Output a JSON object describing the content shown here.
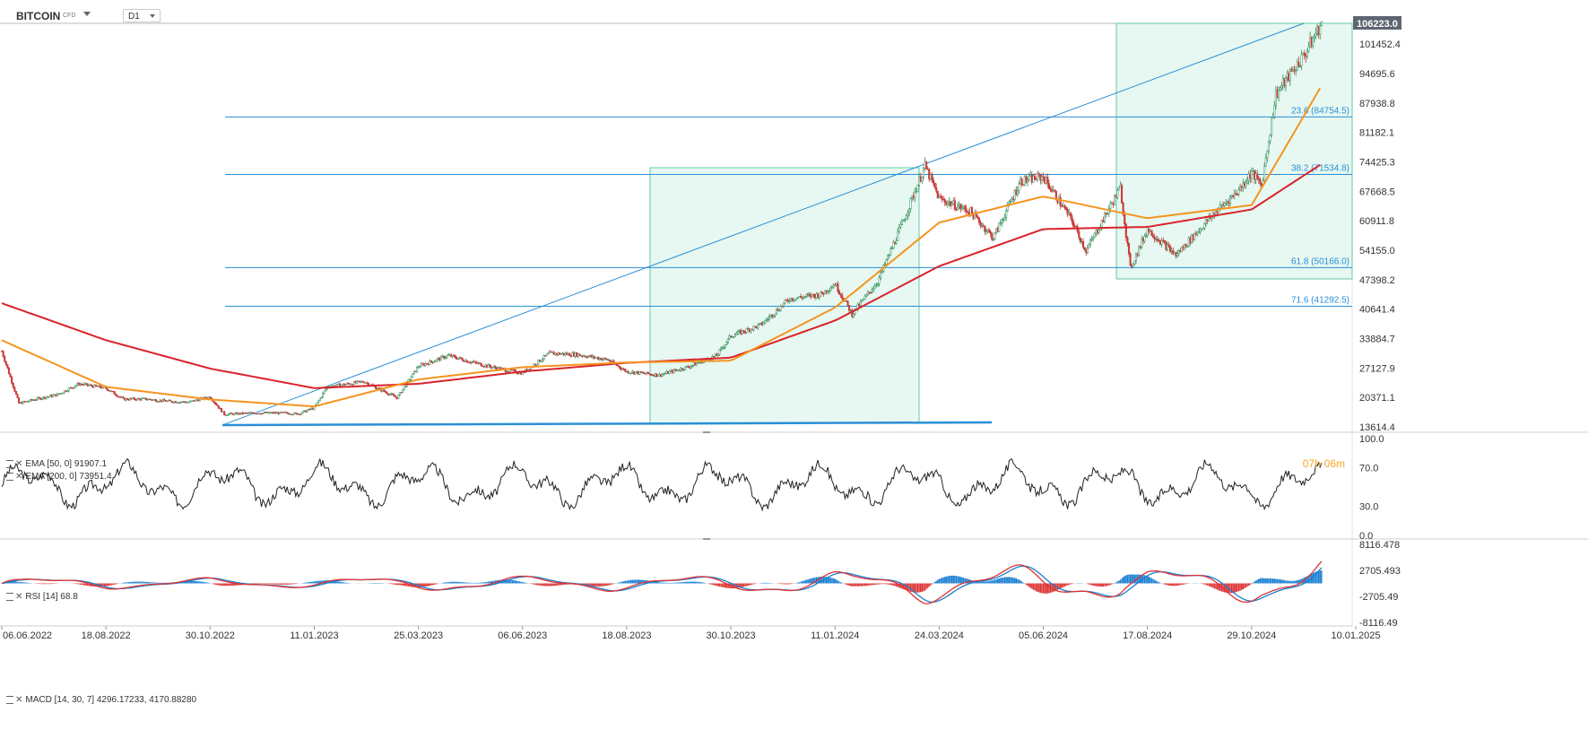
{
  "header": {
    "symbol": "BITCOIN",
    "symbol_sub": "CFD",
    "timeframe": "D1"
  },
  "timer": {
    "hours": "07",
    "hours_unit": "h",
    "minutes": "06",
    "minutes_unit": "m"
  },
  "indicators": {
    "ema50": "EMA [50, 0] 91907.1",
    "ema200": "EMA [200, 0] 73951.4",
    "rsi": "RSI [14] 68.8",
    "macd": "MACD [14, 30, 7] 4296.17233, 4170.88280"
  },
  "colors": {
    "ema50": "#f5941f",
    "ema200": "#d9232a",
    "fib": "#2a8fd6",
    "box": "#d9f5ea",
    "box_border": "#63c9a4",
    "up": "#2f8f5b",
    "down": "#c73a3a",
    "macd_signal": "#1a7fd1",
    "macd_line": "#d33"
  },
  "chart_data": {
    "type": "candlestick",
    "x_ticks": [
      "06.06.2022",
      "18.08.2022",
      "30.10.2022",
      "11.01.2023",
      "25.03.2023",
      "06.06.2023",
      "18.08.2023",
      "30.10.2023",
      "11.01.2024",
      "24.03.2024",
      "05.06.2024",
      "17.08.2024",
      "29.10.2024",
      "10.01.2025"
    ],
    "price_ticks": [
      "101452.4",
      "94695.6",
      "87938.8",
      "81182.1",
      "74425.3",
      "67668.5",
      "60911.8",
      "54155.0",
      "47398.2",
      "40641.4",
      "33884.7",
      "27127.9",
      "20371.1",
      "13614.4"
    ],
    "price_range": [
      13614.4,
      106223.0
    ],
    "last_price": "106223.0",
    "price_series": [
      [
        "06.06.2022",
        31000
      ],
      [
        "18.06.2022",
        19000
      ],
      [
        "30.06.2022",
        20000
      ],
      [
        "15.07.2022",
        21000
      ],
      [
        "30.07.2022",
        23500
      ],
      [
        "18.08.2022",
        22500
      ],
      [
        "30.08.2022",
        20000
      ],
      [
        "15.09.2022",
        20000
      ],
      [
        "30.09.2022",
        19500
      ],
      [
        "15.10.2022",
        19300
      ],
      [
        "30.10.2022",
        20500
      ],
      [
        "09.11.2022",
        16500
      ],
      [
        "30.11.2022",
        16800
      ],
      [
        "20.12.2022",
        16800
      ],
      [
        "31.12.2022",
        16600
      ],
      [
        "11.01.2023",
        18000
      ],
      [
        "20.01.2023",
        22800
      ],
      [
        "15.02.2023",
        24000
      ],
      [
        "10.03.2023",
        20300
      ],
      [
        "25.03.2023",
        27500
      ],
      [
        "15.04.2023",
        30000
      ],
      [
        "01.05.2023",
        28500
      ],
      [
        "20.05.2023",
        27000
      ],
      [
        "06.06.2023",
        26000
      ],
      [
        "25.06.2023",
        30500
      ],
      [
        "15.07.2023",
        30200
      ],
      [
        "05.08.2023",
        29000
      ],
      [
        "18.08.2023",
        26300
      ],
      [
        "10.09.2023",
        25500
      ],
      [
        "01.10.2023",
        27500
      ],
      [
        "20.10.2023",
        30000
      ],
      [
        "30.10.2023",
        34500
      ],
      [
        "20.11.2023",
        37000
      ],
      [
        "10.12.2023",
        43000
      ],
      [
        "01.01.2024",
        44000
      ],
      [
        "11.01.2024",
        46500
      ],
      [
        "23.01.2024",
        39500
      ],
      [
        "10.02.2024",
        47000
      ],
      [
        "28.02.2024",
        61000
      ],
      [
        "14.03.2024",
        73500
      ],
      [
        "24.03.2024",
        66000
      ],
      [
        "15.04.2024",
        63000
      ],
      [
        "01.05.2024",
        57000
      ],
      [
        "20.05.2024",
        70000
      ],
      [
        "05.06.2024",
        71000
      ],
      [
        "25.06.2024",
        61000
      ],
      [
        "05.07.2024",
        54000
      ],
      [
        "29.07.2024",
        68500
      ],
      [
        "05.08.2024",
        50000
      ],
      [
        "17.08.2024",
        59000
      ],
      [
        "06.09.2024",
        53000
      ],
      [
        "01.10.2024",
        62000
      ],
      [
        "20.10.2024",
        68000
      ],
      [
        "29.10.2024",
        72000
      ],
      [
        "05.11.2024",
        69000
      ],
      [
        "15.11.2024",
        90000
      ],
      [
        "05.12.2024",
        99000
      ],
      [
        "17.12.2024",
        106223
      ]
    ],
    "ema50_series": [
      [
        "06.06.2022",
        33500
      ],
      [
        "18.08.2022",
        22800
      ],
      [
        "30.10.2022",
        19900
      ],
      [
        "11.01.2023",
        18300
      ],
      [
        "25.03.2023",
        24500
      ],
      [
        "06.06.2023",
        27300
      ],
      [
        "18.08.2023",
        28400
      ],
      [
        "30.10.2023",
        28800
      ],
      [
        "11.01.2024",
        41000
      ],
      [
        "24.03.2024",
        60500
      ],
      [
        "05.06.2024",
        66500
      ],
      [
        "17.08.2024",
        61500
      ],
      [
        "29.10.2024",
        64500
      ],
      [
        "17.12.2024",
        91907.1
      ]
    ],
    "ema200_series": [
      [
        "06.06.2022",
        42000
      ],
      [
        "18.08.2022",
        33500
      ],
      [
        "30.10.2022",
        27000
      ],
      [
        "11.01.2023",
        22500
      ],
      [
        "25.03.2023",
        23500
      ],
      [
        "06.06.2023",
        26300
      ],
      [
        "18.08.2023",
        28300
      ],
      [
        "30.10.2023",
        29500
      ],
      [
        "11.01.2024",
        38000
      ],
      [
        "24.03.2024",
        50500
      ],
      [
        "05.06.2024",
        59000
      ],
      [
        "17.08.2024",
        59500
      ],
      [
        "29.10.2024",
        63500
      ],
      [
        "17.12.2024",
        73951.4
      ]
    ],
    "fibonacci": [
      {
        "label": "23.6 (84754.5)",
        "value": 84754.5
      },
      {
        "label": "38.2 (71534.8)",
        "value": 71534.8
      },
      {
        "label": "61.8 (50166.0)",
        "value": 50166.0
      },
      {
        "label": "71.6 (41292.5)",
        "value": 41292.5
      }
    ],
    "rsi": {
      "ticks": [
        "100.0",
        "70.0",
        "30.0",
        "0.0"
      ],
      "range": [
        0,
        100
      ],
      "last": 68.8
    },
    "macd": {
      "ticks": [
        "8116.478",
        "2705.493",
        "-2705.49",
        "-8116.49"
      ],
      "range": [
        -8116.49,
        8116.478
      ],
      "macd": 4296.17233,
      "signal": 4170.8828
    }
  }
}
